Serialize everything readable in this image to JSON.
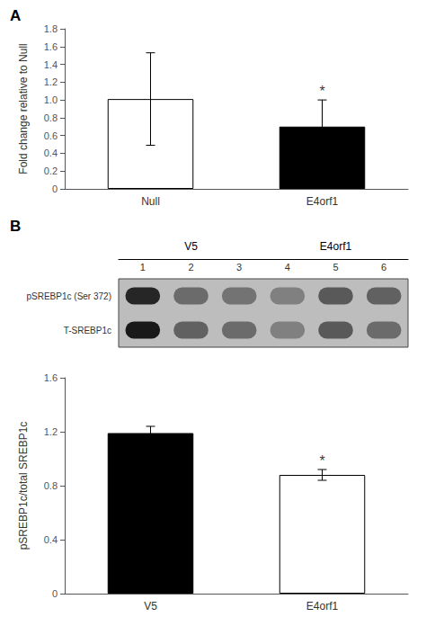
{
  "chart_data": [
    {
      "type": "bar",
      "title": "A",
      "categories": [
        "Null",
        "E4orf1"
      ],
      "values": [
        1.01,
        0.7
      ],
      "errors": [
        0.52,
        0.3
      ],
      "colors": [
        "#ffffff",
        "#000000"
      ],
      "ylabel": "Fold change relative to Null",
      "ylim": [
        0,
        1.8
      ],
      "yticks": [
        0,
        0.2,
        0.4,
        0.6,
        0.8,
        {
          "value": 1.0,
          "label": "1.0"
        },
        1.2,
        1.4,
        1.6,
        1.8
      ],
      "grid": false,
      "annotations": [
        {
          "text": "*",
          "x": "E4orf1",
          "y": 1.02
        }
      ]
    },
    {
      "type": "heatmap",
      "title": "B",
      "x": [
        "1",
        "2",
        "3",
        "4",
        "5",
        "6"
      ],
      "y": [
        "pSREBP1c (Ser 372)",
        "T-SREBP1c"
      ],
      "values": [
        [
          0.85,
          0.58,
          0.55,
          0.5,
          0.65,
          0.62
        ],
        [
          0.9,
          0.62,
          0.58,
          0.5,
          0.65,
          0.58
        ]
      ],
      "annotations": [
        {
          "text": "V5",
          "lanes": [
            "1",
            "2",
            "3"
          ]
        },
        {
          "text": "E4orf1",
          "lanes": [
            "4",
            "5",
            "6"
          ]
        }
      ]
    },
    {
      "type": "bar",
      "categories": [
        "V5",
        "E4orf1"
      ],
      "values": [
        1.19,
        0.88
      ],
      "errors": [
        0.05,
        0.04
      ],
      "colors": [
        "#000000",
        "#ffffff"
      ],
      "ylabel": "pSREBP1c/total SREBP1c",
      "ylim": [
        0,
        1.6
      ],
      "yticks": [
        0,
        0.4,
        0.8,
        1.2,
        1.6
      ],
      "grid": false,
      "annotations": [
        {
          "text": "*",
          "x": "E4orf1",
          "y": 0.93
        }
      ]
    }
  ]
}
